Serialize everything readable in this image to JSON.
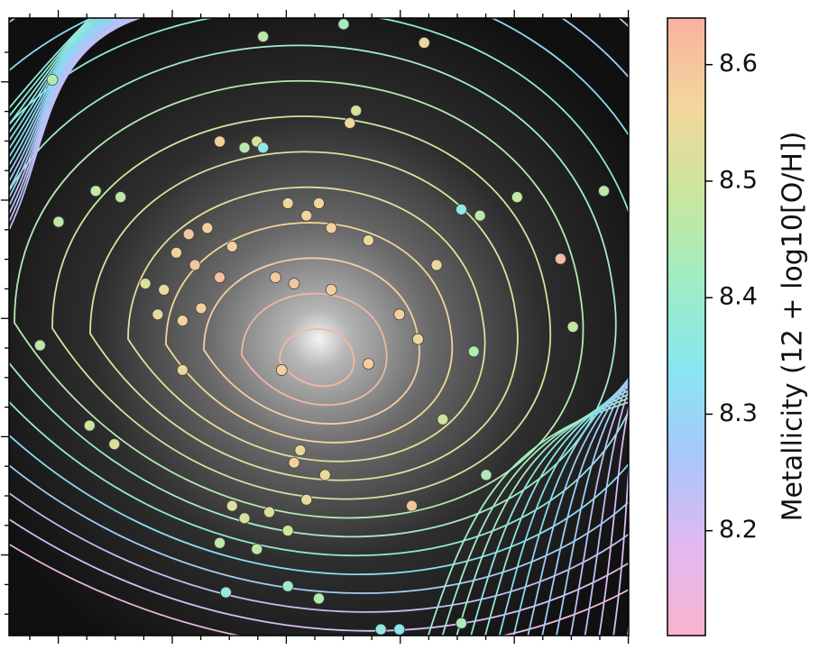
{
  "chart_data": {
    "type": "scatter",
    "xlim": [
      0,
      1
    ],
    "ylim": [
      0,
      1
    ],
    "x": [
      0.07,
      0.41,
      0.54,
      0.67,
      0.4,
      0.55,
      0.56,
      0.41,
      0.38,
      0.34,
      0.14,
      0.18,
      0.08,
      0.73,
      0.76,
      0.82,
      0.96,
      0.29,
      0.32,
      0.36,
      0.45,
      0.48,
      0.5,
      0.52,
      0.58,
      0.27,
      0.3,
      0.34,
      0.43,
      0.46,
      0.52,
      0.25,
      0.22,
      0.24,
      0.28,
      0.31,
      0.89,
      0.69,
      0.63,
      0.66,
      0.75,
      0.91,
      0.05,
      0.44,
      0.58,
      0.28,
      0.7,
      0.13,
      0.17,
      0.46,
      0.47,
      0.51,
      0.36,
      0.38,
      0.42,
      0.45,
      0.48,
      0.4,
      0.34,
      0.65,
      0.77,
      0.35,
      0.6,
      0.63,
      0.73,
      0.5,
      0.45
    ],
    "y": [
      0.9,
      0.97,
      0.99,
      0.96,
      0.8,
      0.83,
      0.85,
      0.79,
      0.79,
      0.8,
      0.72,
      0.71,
      0.67,
      0.69,
      0.68,
      0.71,
      0.72,
      0.65,
      0.66,
      0.63,
      0.7,
      0.68,
      0.7,
      0.66,
      0.64,
      0.62,
      0.6,
      0.58,
      0.58,
      0.57,
      0.56,
      0.56,
      0.57,
      0.52,
      0.51,
      0.53,
      0.61,
      0.6,
      0.52,
      0.48,
      0.46,
      0.5,
      0.47,
      0.43,
      0.44,
      0.43,
      0.35,
      0.34,
      0.31,
      0.28,
      0.3,
      0.26,
      0.21,
      0.19,
      0.2,
      0.17,
      0.22,
      0.14,
      0.15,
      0.21,
      0.26,
      0.07,
      0.01,
      0.01,
      0.02,
      0.06,
      0.08
    ],
    "values": [
      8.45,
      8.47,
      8.42,
      8.55,
      8.52,
      8.56,
      8.5,
      8.36,
      8.46,
      8.58,
      8.48,
      8.47,
      8.47,
      8.36,
      8.46,
      8.48,
      8.47,
      8.6,
      8.58,
      8.58,
      8.55,
      8.57,
      8.56,
      8.58,
      8.55,
      8.57,
      8.6,
      8.61,
      8.59,
      8.6,
      8.58,
      8.55,
      8.52,
      8.55,
      8.57,
      8.58,
      8.62,
      8.55,
      8.58,
      8.55,
      8.45,
      8.48,
      8.47,
      8.58,
      8.58,
      8.55,
      8.5,
      8.5,
      8.52,
      8.57,
      8.55,
      8.55,
      8.53,
      8.51,
      8.52,
      8.5,
      8.55,
      8.47,
      8.47,
      8.6,
      8.44,
      8.38,
      8.37,
      8.35,
      8.43,
      8.45,
      8.4
    ],
    "colorbar": {
      "label": "Metallicity (12 + log10[O/H])",
      "clim": [
        8.11,
        8.64
      ],
      "ticks": [
        8.2,
        8.3,
        8.4,
        8.5,
        8.6
      ],
      "colormap": [
        "#f9b4cc",
        "#e2b8f2",
        "#a9c6fa",
        "#88e6f2",
        "#9eedc4",
        "#c9e79c",
        "#f3d69c",
        "#f7b2a0"
      ]
    }
  }
}
